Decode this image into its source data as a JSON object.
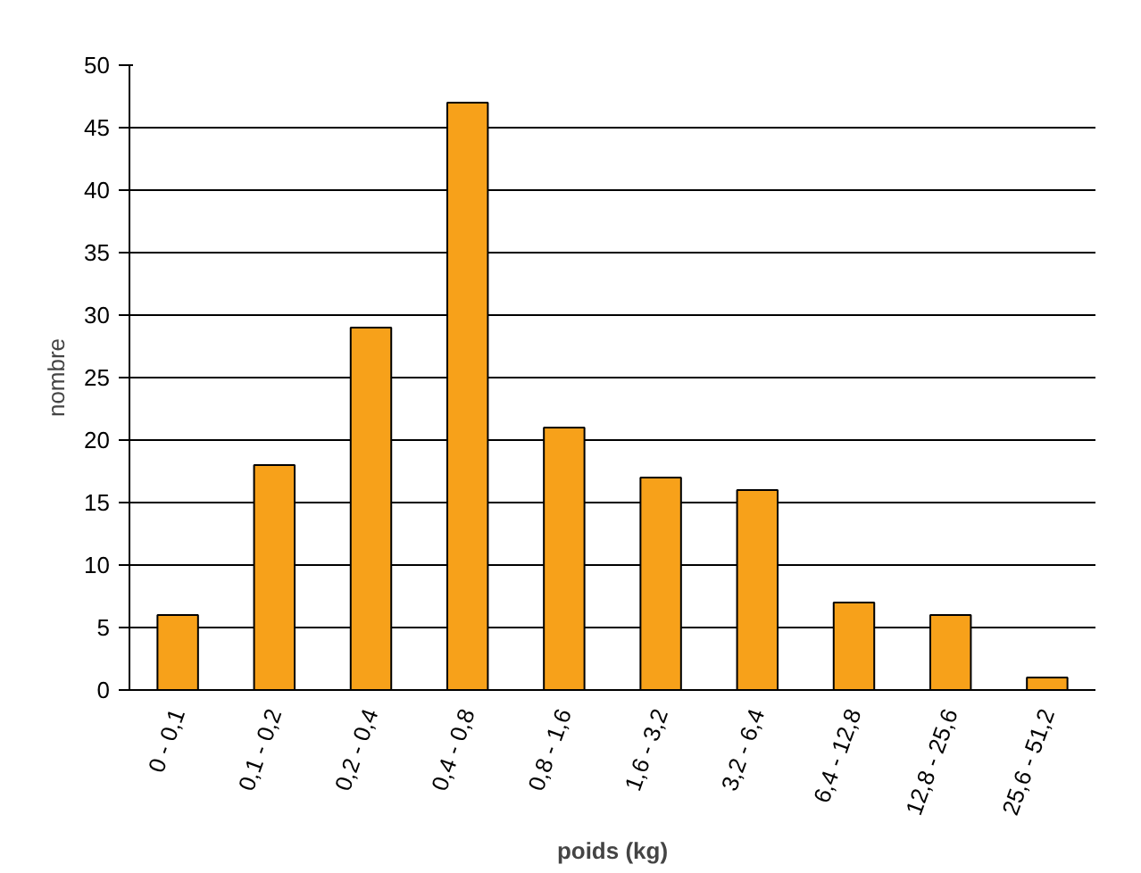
{
  "chart_data": {
    "type": "bar",
    "xlabel": "poids (kg)",
    "ylabel": "nombre",
    "categories": [
      "0 - 0,1",
      "0,1 - 0,2",
      "0,2 - 0,4",
      "0,4 - 0,8",
      "0,8 - 1,6",
      "1,6 - 3,2",
      "3,2 - 6,4",
      "6,4 - 12,8",
      "12,8 - 25,6",
      "25,6 - 51,2"
    ],
    "values": [
      6,
      18,
      29,
      47,
      21,
      17,
      16,
      7,
      6,
      1
    ],
    "color": "#f7a11a",
    "ylim": [
      0,
      50
    ],
    "yticks": [
      0,
      5,
      10,
      15,
      20,
      25,
      30,
      35,
      40,
      45,
      50
    ],
    "grid": "y"
  }
}
